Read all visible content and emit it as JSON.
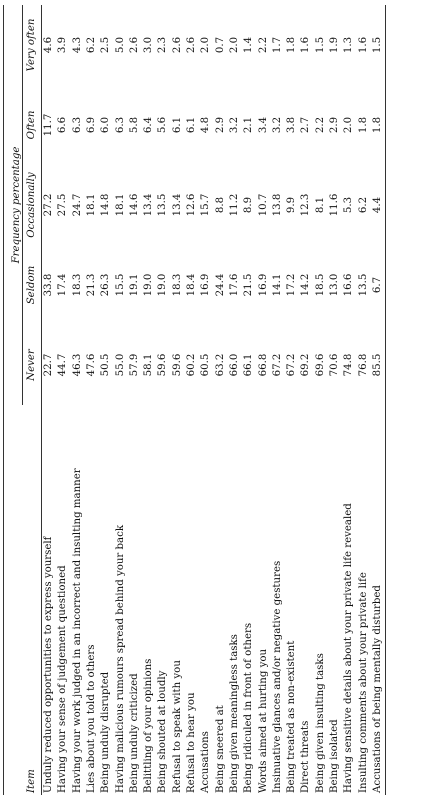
{
  "table": {
    "group_header": "Frequency percentage",
    "columns": [
      "Item",
      "Never",
      "Seldom",
      "Occasionally",
      "Often",
      "Very often"
    ],
    "rows": [
      {
        "item": "Unduly reduced opportunities to express yourself",
        "values": [
          "22.7",
          "33.8",
          "27.2",
          "11.7",
          "4.6"
        ]
      },
      {
        "item": "Having your sense of judgement questioned",
        "values": [
          "44.7",
          "17.4",
          "27.5",
          "6.6",
          "3.9"
        ]
      },
      {
        "item": "Having your work judged in an incorrect and insulting manner",
        "values": [
          "46.3",
          "18.3",
          "24.7",
          "6.3",
          "4.3"
        ]
      },
      {
        "item": "Lies about you told to others",
        "values": [
          "47.6",
          "21.3",
          "18.1",
          "6.9",
          "6.2"
        ]
      },
      {
        "item": "Being unduly disrupted",
        "values": [
          "50.5",
          "26.3",
          "14.8",
          "6.0",
          "2.5"
        ]
      },
      {
        "item": "Having malicious rumours spread behind your back",
        "values": [
          "55.0",
          "15.5",
          "18.1",
          "6.3",
          "5.0"
        ]
      },
      {
        "item": "Being unduly criticized",
        "values": [
          "57.9",
          "19.1",
          "14.6",
          "5.8",
          "2.6"
        ]
      },
      {
        "item": "Belittling of your opinions",
        "values": [
          "58.1",
          "19.0",
          "13.4",
          "6.4",
          "3.0"
        ]
      },
      {
        "item": "Being shouted at loudly",
        "values": [
          "59.6",
          "19.0",
          "13.5",
          "5.6",
          "2.3"
        ]
      },
      {
        "item": "Refusal to speak with you",
        "values": [
          "59.6",
          "18.3",
          "13.4",
          "6.1",
          "2.6"
        ]
      },
      {
        "item": "Refusal to hear you",
        "values": [
          "60.2",
          "18.4",
          "12.6",
          "6.1",
          "2.6"
        ]
      },
      {
        "item": "Accusations",
        "values": [
          "60.5",
          "16.9",
          "15.7",
          "4.8",
          "2.0"
        ]
      },
      {
        "item": "Being sneered at",
        "values": [
          "63.2",
          "24.4",
          "8.8",
          "2.9",
          "0.7"
        ]
      },
      {
        "item": "Being given meaningless tasks",
        "values": [
          "66.0",
          "17.6",
          "11.2",
          "3.2",
          "2.0"
        ]
      },
      {
        "item": "Being ridiculed in front of others",
        "values": [
          "66.1",
          "21.5",
          "8.9",
          "2.1",
          "1.4"
        ]
      },
      {
        "item": "Words aimed at hurting you",
        "values": [
          "66.8",
          "16.9",
          "10.7",
          "3.4",
          "2.2"
        ]
      },
      {
        "item": "Insinuative glances and/or negative gestures",
        "values": [
          "67.2",
          "14.1",
          "13.8",
          "3.2",
          "1.7"
        ]
      },
      {
        "item": "Being treated as non-existent",
        "values": [
          "67.2",
          "17.2",
          "9.9",
          "3.8",
          "1.8"
        ]
      },
      {
        "item": "Direct threats",
        "values": [
          "69.2",
          "14.2",
          "12.3",
          "2.7",
          "1.6"
        ]
      },
      {
        "item": "Being given insulting tasks",
        "values": [
          "69.6",
          "18.5",
          "8.1",
          "2.2",
          "1.5"
        ]
      },
      {
        "item": "Being isolated",
        "values": [
          "70.6",
          "13.0",
          "11.6",
          "2.9",
          "1.9"
        ]
      },
      {
        "item": "Having sensitive details about your private life revealed",
        "values": [
          "74.8",
          "16.6",
          "5.3",
          "2.0",
          "1.3"
        ]
      },
      {
        "item": "Insulting comments about your private life",
        "values": [
          "76.8",
          "13.5",
          "6.2",
          "1.8",
          "1.6"
        ]
      },
      {
        "item": "Accusations of being mentally disturbed",
        "values": [
          "85.5",
          "6.7",
          "4.4",
          "1.8",
          "1.5"
        ]
      }
    ]
  }
}
